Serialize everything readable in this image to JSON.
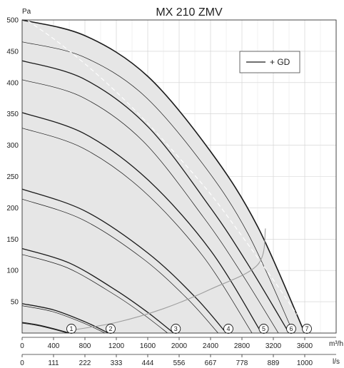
{
  "chart_data": {
    "type": "line",
    "title": "MX 210 ZMV",
    "ylabel": "Pa",
    "xlabel_primary_unit": "m³/h",
    "xlabel_secondary_unit": "l/s",
    "xlim": [
      0,
      4000
    ],
    "ylim": [
      0,
      500
    ],
    "y_ticks": [
      "0",
      "50",
      "100",
      "150",
      "200",
      "250",
      "300",
      "350",
      "400",
      "450",
      "500"
    ],
    "x_ticks_m3h": [
      "0",
      "400",
      "800",
      "1200",
      "1600",
      "2000",
      "2400",
      "2800",
      "3200",
      "3600"
    ],
    "x_ticks_ls": [
      "0",
      "111",
      "222",
      "333",
      "444",
      "556",
      "667",
      "778",
      "889",
      "1000"
    ],
    "grid": true,
    "legend": {
      "entries": [
        "+ GD"
      ],
      "placement": "top-right"
    },
    "series": [
      {
        "label": "1",
        "x": [
          0,
          200,
          400,
          600
        ],
        "y": [
          17,
          13,
          7,
          0
        ]
      },
      {
        "label": "2",
        "x": [
          0,
          400,
          800,
          1100
        ],
        "y": [
          47,
          37,
          18,
          0
        ]
      },
      {
        "label": "3",
        "x": [
          0,
          600,
          1200,
          1600,
          1930
        ],
        "y": [
          135,
          112,
          68,
          33,
          0
        ]
      },
      {
        "label": "4",
        "x": [
          0,
          800,
          1600,
          2200,
          2600
        ],
        "y": [
          230,
          195,
          128,
          58,
          0
        ]
      },
      {
        "label": "5",
        "x": [
          0,
          800,
          1600,
          2400,
          3050
        ],
        "y": [
          352,
          318,
          245,
          132,
          0
        ]
      },
      {
        "label": "6",
        "x": [
          0,
          800,
          1600,
          2400,
          2900,
          3400
        ],
        "y": [
          435,
          405,
          330,
          200,
          105,
          0
        ]
      },
      {
        "label": "7",
        "x": [
          0,
          800,
          1600,
          2400,
          3000,
          3600
        ],
        "y": [
          500,
          475,
          410,
          290,
          170,
          0
        ]
      },
      {
        "label": "+ GD",
        "x": [
          0,
          400,
          800,
          1200,
          1600,
          2000,
          2400,
          2800,
          3200,
          3500
        ],
        "y": [
          505,
          470,
          430,
          385,
          335,
          280,
          222,
          155,
          85,
          30
        ]
      }
    ],
    "system_curve": {
      "x": [
        600,
        1200,
        1800,
        2400,
        3000,
        3100
      ],
      "y": [
        4,
        17,
        39,
        70,
        109,
        167
      ]
    },
    "colors": {
      "curve": "#1a1a1a",
      "fill": "#e6e6e6",
      "gd": "#ffffff",
      "system": "#9e9e9e",
      "grid": "#cfcfcf"
    }
  }
}
